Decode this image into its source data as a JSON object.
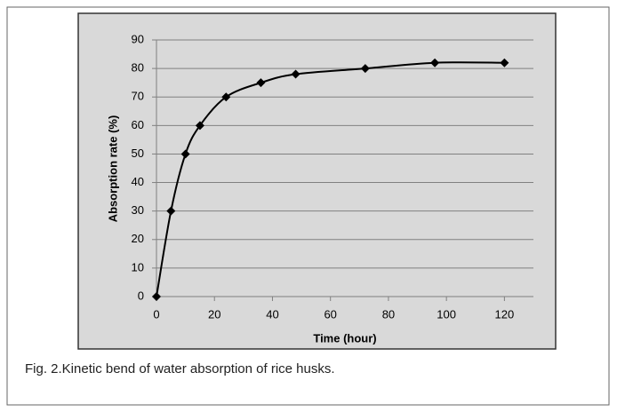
{
  "chart_data": {
    "type": "line",
    "x_label": "Time (hour)",
    "y_label": "Absorption rate (%)",
    "caption": "Fig. 2.Kinetic bend of water absorption of rice husks.",
    "x": [
      0,
      5,
      10,
      15,
      24,
      36,
      48,
      72,
      96,
      120
    ],
    "series": [
      {
        "values": [
          0,
          30,
          50,
          60,
          70,
          75,
          78,
          80,
          82,
          82
        ],
        "color": "#000000"
      }
    ],
    "xlim": [
      0,
      130
    ],
    "xticks": [
      0,
      20,
      40,
      60,
      80,
      100,
      120
    ],
    "ylim": [
      0,
      90
    ],
    "yticks": [
      0,
      10,
      20,
      30,
      40,
      50,
      60,
      70,
      80,
      90
    ],
    "grid": true,
    "smooth": true
  }
}
